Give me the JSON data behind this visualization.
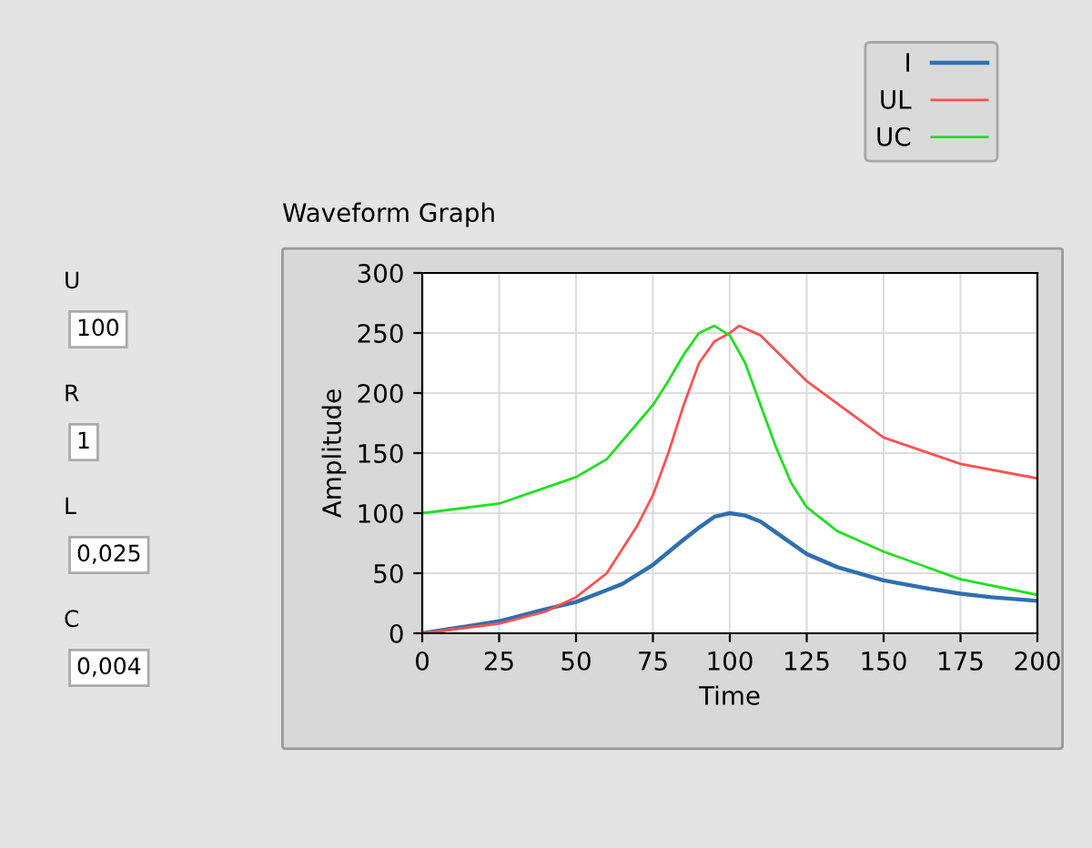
{
  "chart_data": {
    "type": "line",
    "title": "Waveform Graph",
    "xlabel": "Time",
    "ylabel": "Amplitude",
    "xlim": [
      0,
      200
    ],
    "xticks": [
      0,
      25,
      50,
      75,
      100,
      125,
      150,
      175,
      200
    ],
    "ylim": [
      0,
      300
    ],
    "yticks": [
      0,
      50,
      100,
      150,
      200,
      250,
      300
    ],
    "grid": true,
    "legend": "top right",
    "annotations": [
      "U",
      "100",
      "R",
      "1",
      "L",
      "0,025",
      "C",
      "0,004"
    ],
    "series": [
      {
        "name": "I",
        "color": "#2f6fb0",
        "x": [
          0,
          10,
          25,
          40,
          50,
          60,
          65,
          75,
          85,
          90,
          95,
          100,
          105,
          110,
          115,
          125,
          135,
          150,
          165,
          175,
          185,
          200
        ],
        "values": [
          0,
          4,
          10,
          20,
          26,
          36,
          41,
          57,
          78,
          88,
          97,
          100,
          98,
          93,
          84,
          66,
          55,
          44,
          37,
          33,
          30,
          27
        ]
      },
      {
        "name": "UL",
        "color": "#ff5050",
        "x": [
          0,
          25,
          40,
          50,
          60,
          70,
          75,
          80,
          85,
          90,
          95,
          100,
          103,
          110,
          125,
          150,
          175,
          200
        ],
        "values": [
          0,
          8,
          18,
          30,
          50,
          90,
          115,
          150,
          190,
          225,
          243,
          250,
          256,
          248,
          210,
          163,
          141,
          129
        ]
      },
      {
        "name": "UC",
        "color": "#20e020",
        "x": [
          0,
          25,
          50,
          60,
          70,
          75,
          80,
          85,
          90,
          95,
          100,
          105,
          110,
          115,
          120,
          125,
          135,
          150,
          175,
          200
        ],
        "values": [
          100,
          108,
          130,
          145,
          175,
          190,
          210,
          232,
          250,
          256,
          248,
          225,
          190,
          155,
          125,
          105,
          85,
          68,
          45,
          32
        ]
      }
    ]
  }
}
